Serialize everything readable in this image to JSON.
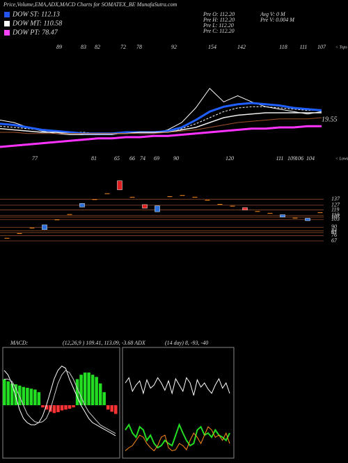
{
  "header": {
    "title": "Price,Volume,EMA,ADX,MACD Charts for SOMATEX_BE MunafaSutra.com",
    "legend": [
      {
        "label": "DOW ST: 112.13",
        "color": "#2255ee"
      },
      {
        "label": "DOW MT: 110.58",
        "color": "#ffffff"
      },
      {
        "label": "DOW PT: 78.47",
        "color": "#ff44ff"
      }
    ],
    "info": [
      "Pre  O: 112.20",
      "Pre  H: 112.20",
      "Pre  L: 112.20",
      "Pre  C: 112.20"
    ],
    "info2": [
      "Avg V: 0  M",
      "Pre  V: 0.004  M"
    ]
  },
  "chart_data": [
    {
      "type": "line",
      "ylim": [
        80,
        140
      ],
      "tops": [
        89,
        83,
        82,
        72,
        78,
        92,
        154,
        142,
        118,
        111,
        107
      ],
      "tops_label": "< Tops",
      "lows": [
        77,
        81,
        65,
        66,
        74,
        69,
        90,
        120,
        111,
        109,
        106,
        104
      ],
      "lows_label": "< Lows",
      "price_label": "19.55",
      "series": [
        {
          "color": "#ffffff",
          "width": 1,
          "values": [
            110,
            108,
            104,
            101,
            99,
            98,
            98,
            98,
            98,
            100,
            99,
            99,
            102,
            108,
            120,
            136,
            125,
            130,
            125,
            121,
            119,
            117,
            115,
            117
          ]
        },
        {
          "color": "#ffffff",
          "width": 1,
          "dash": true,
          "values": [
            105,
            104,
            103,
            102,
            101,
            100,
            100,
            99,
            99,
            99,
            100,
            100,
            101,
            103,
            107,
            112,
            117,
            120,
            121,
            121,
            120,
            119,
            118,
            118
          ]
        },
        {
          "color": "#1f5fff",
          "width": 3,
          "values": [
            107,
            106,
            104,
            102,
            101,
            100,
            99,
            99,
            99,
            100,
            100,
            100,
            101,
            104,
            110,
            117,
            121,
            123,
            124,
            123,
            122,
            120,
            119,
            118
          ]
        },
        {
          "color": "#eeeeee",
          "width": 1.5,
          "values": [
            103,
            102,
            101,
            100,
            100,
            99,
            99,
            99,
            99,
            99,
            100,
            100,
            100,
            102,
            104,
            108,
            112,
            114,
            115,
            116,
            116,
            116,
            116,
            116
          ]
        },
        {
          "color": "#a0522d",
          "width": 1,
          "values": [
            100,
            100,
            99,
            99,
            99,
            99,
            99,
            99,
            99,
            99,
            99,
            99,
            100,
            101,
            102,
            104,
            106,
            108,
            109,
            110,
            111,
            111,
            111,
            112
          ]
        },
        {
          "color": "#ff33ff",
          "width": 3,
          "values": [
            88,
            89,
            90,
            91,
            92,
            93,
            94,
            95,
            95,
            96,
            96,
            97,
            97,
            98,
            99,
            100,
            101,
            102,
            103,
            103,
            104,
            104,
            105,
            105
          ]
        }
      ]
    },
    {
      "type": "candlestick",
      "ylim": [
        60,
        170
      ],
      "yticks": [
        137,
        127,
        119,
        110,
        107,
        103,
        90,
        84,
        81,
        76,
        67
      ],
      "up_color": "#2a6fdb",
      "down_color": "#e02020",
      "neutral_color": "#ff8c1a",
      "open": [
        72,
        80,
        89,
        86,
        103,
        112,
        124,
        137,
        147,
        168,
        141,
        128,
        116,
        142,
        144,
        141,
        136,
        129,
        126,
        123,
        117,
        114,
        107,
        106,
        101,
        115
      ],
      "close": [
        72,
        80,
        89,
        94,
        103,
        112,
        130,
        137,
        147,
        153,
        141,
        122,
        126,
        142,
        144,
        141,
        136,
        129,
        126,
        119,
        117,
        114,
        111,
        106,
        105,
        115
      ]
    },
    {
      "type": "macd",
      "label": "MACD:",
      "params": "(12,26,9 ) 109.41, 113.09, -3.68 ADX",
      "ylim": [
        -10,
        10
      ],
      "hist_pos_color": "#22dd22",
      "hist_neg_color": "#ff3333",
      "histogram": [
        6,
        5.5,
        5,
        4.8,
        4.5,
        4.2,
        4,
        3.8,
        3.6,
        3,
        -0.5,
        -1,
        -1.5,
        -1.8,
        -1.6,
        -1.2,
        -1,
        -0.8,
        -0.5,
        6,
        7,
        7.5,
        7.5,
        7,
        6.5,
        5,
        3,
        -1,
        -1.5,
        -2
      ],
      "series": [
        {
          "color": "#ffffff",
          "values": [
            8,
            7,
            5,
            2,
            -1,
            -3,
            -4,
            -4.5,
            -4.5,
            -4,
            -2.5,
            0,
            3,
            6,
            8,
            9,
            8.5,
            6,
            4,
            2,
            0,
            -1.5,
            -3,
            -4,
            -4.5,
            -5,
            -5.5,
            -6,
            -6.5,
            -7
          ]
        },
        {
          "color": "#cccccc",
          "values": [
            6,
            6,
            5.5,
            4,
            2,
            0,
            -2,
            -3,
            -3.8,
            -4,
            -3.8,
            -3,
            -1,
            2,
            5,
            7,
            8,
            7.5,
            6,
            4,
            2,
            0,
            -1.5,
            -2.5,
            -3.5,
            -4.5,
            -5,
            -5.5,
            -6,
            -6.5
          ]
        }
      ]
    },
    {
      "type": "adx",
      "label": "(14  day) 8, -93, -40",
      "ylim": [
        0,
        100
      ],
      "series": [
        {
          "color": "#ffffff",
          "values": [
            70,
            75,
            62,
            68,
            72,
            60,
            73,
            65,
            68,
            75,
            70,
            63,
            72,
            60,
            74,
            68,
            62,
            75,
            70,
            58,
            73,
            66,
            70,
            64,
            60,
            68,
            74,
            65,
            70,
            60
          ]
        },
        {
          "color": "#22dd22",
          "values": [
            25,
            30,
            22,
            18,
            28,
            25,
            15,
            20,
            12,
            8,
            10,
            15,
            12,
            10,
            20,
            30,
            22,
            15,
            10,
            12,
            25,
            28,
            20,
            22,
            18,
            25,
            20,
            18,
            15,
            22
          ]
        },
        {
          "color": "#ff8c1a",
          "values": [
            5,
            8,
            10,
            15,
            20,
            18,
            12,
            8,
            5,
            10,
            18,
            20,
            8,
            5,
            6,
            12,
            10,
            6,
            15,
            22,
            18,
            12,
            20,
            28,
            25,
            18,
            20,
            15,
            22,
            12
          ]
        }
      ]
    }
  ]
}
